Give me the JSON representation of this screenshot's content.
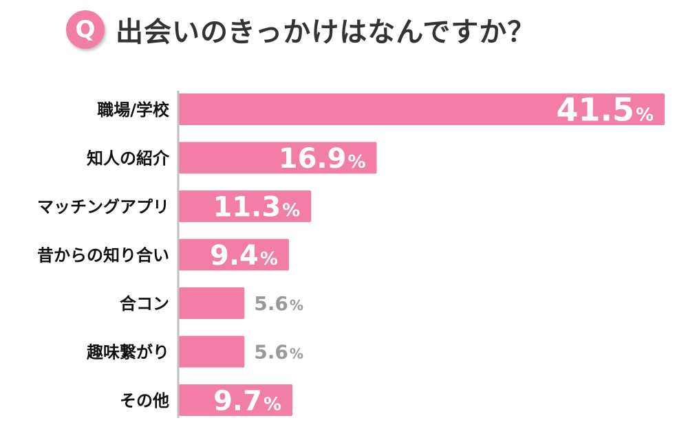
{
  "header": {
    "badge": "Q",
    "title": "出会いのきっかけはなんですか？"
  },
  "colors": {
    "bar": "#f27ea8",
    "axis": "#c0c0c0",
    "outside_label": "#999999"
  },
  "chart_data": {
    "type": "bar",
    "orientation": "horizontal",
    "title": "出会いのきっかけはなんですか？",
    "unit": "%",
    "categories": [
      "職場/学校",
      "知人の紹介",
      "マッチングアプリ",
      "昔からの知り合い",
      "合コン",
      "趣味繋がり",
      "その他"
    ],
    "values": [
      41.5,
      16.9,
      11.3,
      9.4,
      5.6,
      5.6,
      9.7
    ],
    "value_labels": [
      "41.5",
      "16.9",
      "11.3",
      "9.4",
      "5.6",
      "5.6",
      "9.7"
    ],
    "xlim": [
      0,
      41.5
    ]
  }
}
